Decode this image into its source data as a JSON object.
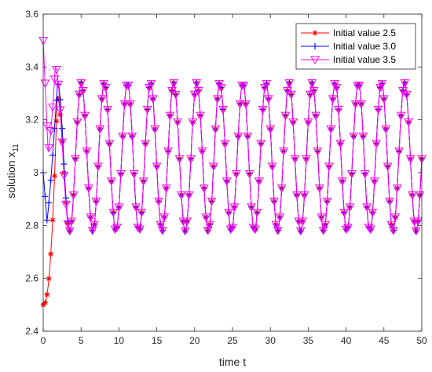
{
  "chart_data": {
    "type": "line",
    "xlabel": "time t",
    "ylabel": "solution x",
    "ylabel_subscript": "11",
    "xlim": [
      0,
      50
    ],
    "ylim": [
      2.4,
      3.6
    ],
    "x_ticks": [
      0,
      5,
      10,
      15,
      20,
      25,
      30,
      35,
      40,
      45,
      50
    ],
    "x_tick_labels": [
      "0",
      "5",
      "10",
      "15",
      "20",
      "25",
      "30",
      "35",
      "40",
      "45",
      "50"
    ],
    "y_ticks": [
      2.4,
      2.6,
      2.8,
      3.0,
      3.2,
      3.4,
      3.6
    ],
    "y_tick_labels": [
      "2.4",
      "2.6",
      "2.8",
      "3",
      "3.2",
      "3.4",
      "3.6"
    ],
    "grid": false,
    "legend_position": "top-right",
    "series": [
      {
        "name": "Initial value 2.5",
        "color": "#ff0000",
        "marker": "asterisk",
        "initial": 2.5,
        "transient_peak_t": 1.85,
        "transient_peak_y": 3.29
      },
      {
        "name": "Initial value 3.0",
        "color": "#0000ff",
        "marker": "plus",
        "initial": 3.0,
        "transient_peak_t": 1.9,
        "transient_peak_y": 3.34
      },
      {
        "name": "Initial value 3.5",
        "color": "#ff00ff",
        "marker": "triangle-down",
        "initial": 3.5,
        "transient_peak_t": 1.6,
        "transient_peak_y": 3.4
      }
    ],
    "oscillation": {
      "mean": 3.06,
      "peak_max": 3.34,
      "trough_min": 2.78,
      "period": 3.05,
      "first_trough_t": 3.5,
      "sample_step": 0.25
    }
  }
}
